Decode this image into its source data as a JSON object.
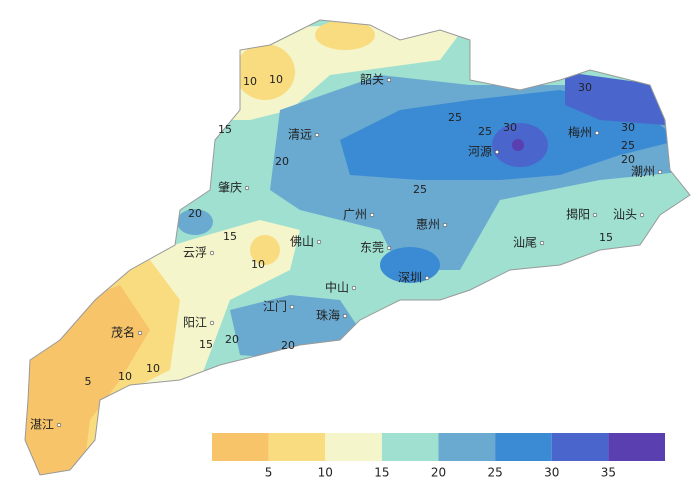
{
  "cities": [
    "韶关",
    "清远",
    "河源",
    "梅州",
    "潮州",
    "肇庆",
    "广州",
    "惠州",
    "揭阳",
    "汕头",
    "云浮",
    "佛山",
    "东莞",
    "汕尾",
    "深圳",
    "中山",
    "江门",
    "珠海",
    "阳江",
    "茂名",
    "湛江"
  ],
  "contour_labels": [
    10,
    10,
    15,
    20,
    25,
    25,
    30,
    30,
    30,
    25,
    20,
    20,
    15,
    10,
    15,
    25,
    20,
    20,
    15,
    10,
    10,
    5
  ],
  "legend": {
    "colors": [
      "#f7c46a",
      "#f9dc80",
      "#f5f5cc",
      "#9fe0d0",
      "#6aaad0",
      "#3a8ad4",
      "#4a66cc",
      "#5a3fb0"
    ],
    "ticks": [
      5,
      10,
      15,
      20,
      25,
      30,
      35
    ]
  }
}
